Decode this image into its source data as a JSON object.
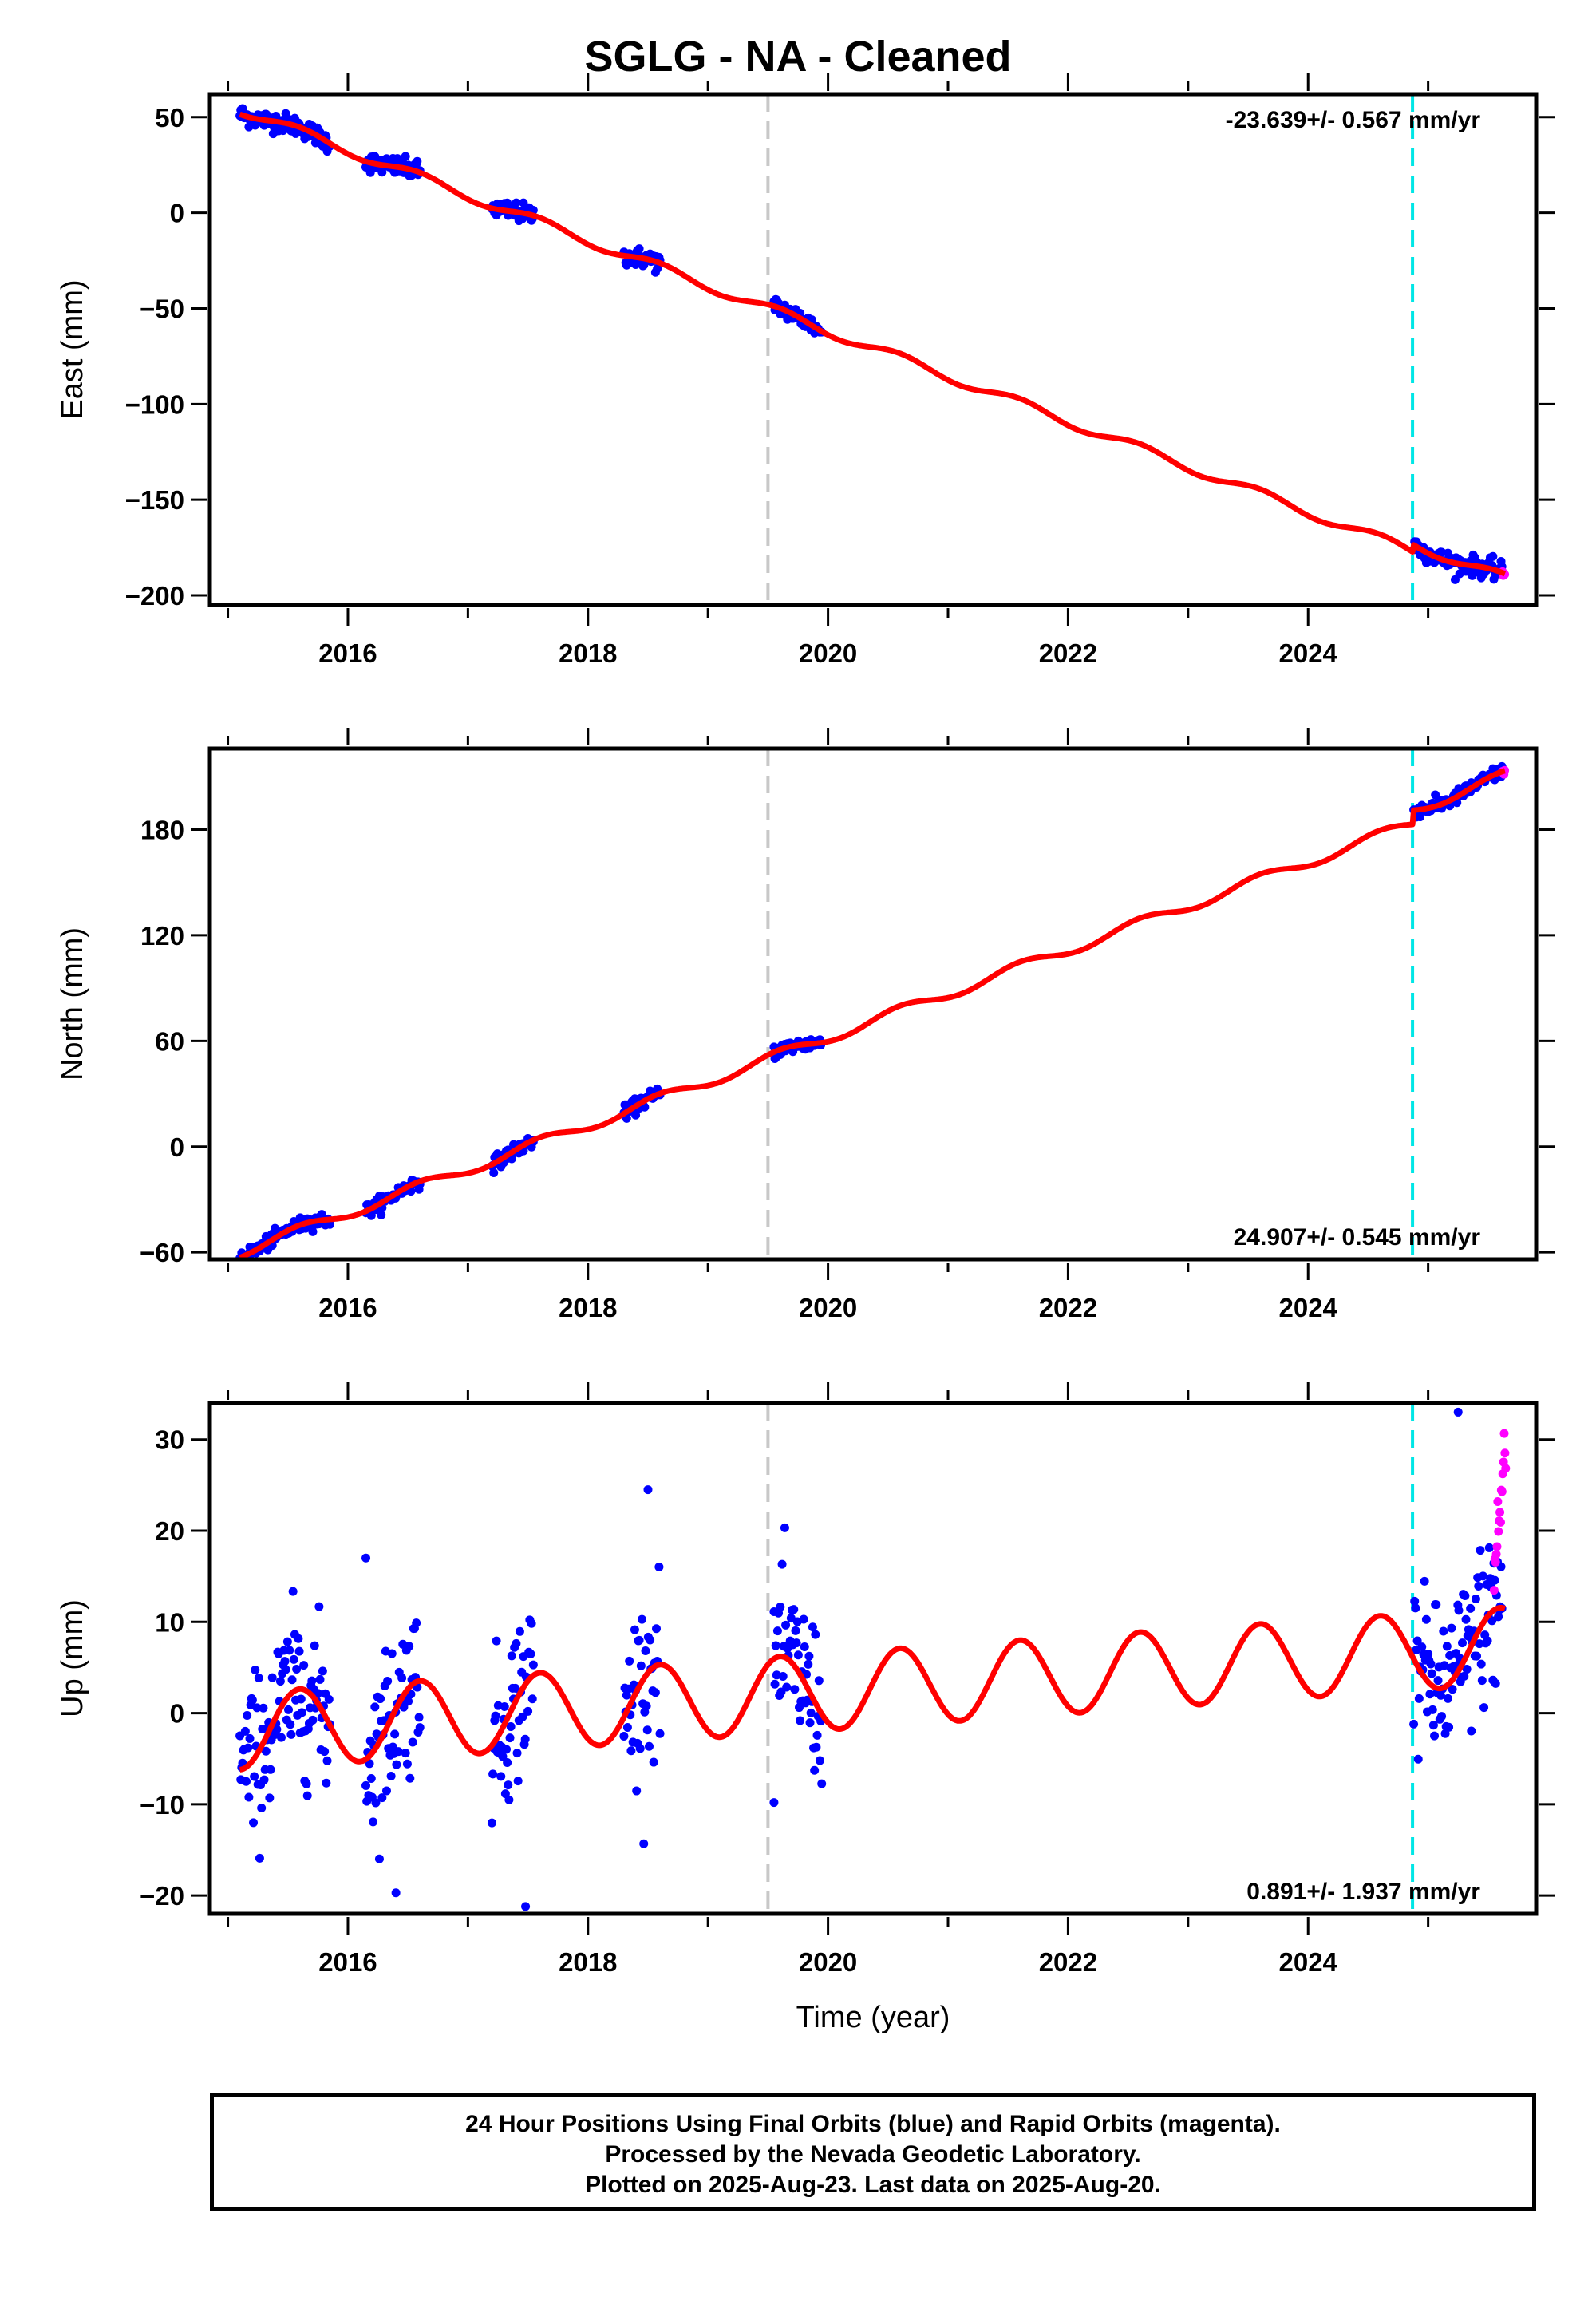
{
  "title": "SGLG  - NA - Cleaned",
  "colors": {
    "final_orbits": "#0000ff",
    "rapid_orbits": "#ff00ff",
    "model_fit": "#ff0000",
    "antenna_change": "#c8c8c8",
    "equipment_change": "#00e6e6"
  },
  "chart_data": [
    {
      "type": "scatter",
      "component": "East",
      "ylabel": "East (mm)",
      "xlabel": "",
      "xlim": [
        2014.85,
        2025.9
      ],
      "ylim": [
        -205,
        62
      ],
      "yticks": [
        50,
        0,
        -50,
        -100,
        -150,
        -200
      ],
      "xticks": [
        2016,
        2018,
        2020,
        2022,
        2024
      ],
      "rate": "-23.639+/- 0.567 mm/yr",
      "rate_position": "top-right",
      "vertical_lines": [
        {
          "x": 2019.5,
          "style": "dashed",
          "color": "gray"
        },
        {
          "x": 2024.87,
          "style": "dashed",
          "color": "cyan"
        }
      ],
      "trend": {
        "t0": 2015.1,
        "v0": 54,
        "slope": -23.639,
        "seasonal_amp": 2.5
      },
      "offsets": [
        {
          "x": 2024.87,
          "value": 4
        }
      ],
      "final_segments": [
        [
          2015.1,
          2015.85
        ],
        [
          2016.15,
          2016.6
        ],
        [
          2017.2,
          2017.55
        ],
        [
          2018.3,
          2018.6
        ],
        [
          2019.55,
          2019.95
        ],
        [
          2024.88,
          2025.62
        ]
      ],
      "rapid_segments": [
        [
          2025.62,
          2025.64
        ]
      ],
      "scatter_sd": 2.5
    },
    {
      "type": "scatter",
      "component": "North",
      "ylabel": "North (mm)",
      "xlabel": "",
      "xlim": [
        2014.85,
        2025.9
      ],
      "ylim": [
        -64,
        226
      ],
      "yticks": [
        180,
        120,
        60,
        0,
        -60
      ],
      "xticks": [
        2016,
        2018,
        2020,
        2022,
        2024
      ],
      "rate": "24.907+/- 0.545 mm/yr",
      "rate_position": "bottom-right",
      "vertical_lines": [
        {
          "x": 2019.5,
          "style": "dashed",
          "color": "gray"
        },
        {
          "x": 2024.87,
          "style": "dashed",
          "color": "cyan"
        }
      ],
      "trend": {
        "t0": 2015.1,
        "v0": -60,
        "slope": 24.907,
        "seasonal_amp": 3.0
      },
      "offsets": [
        {
          "x": 2024.87,
          "value": 8
        }
      ],
      "final_segments": [
        [
          2015.1,
          2015.85
        ],
        [
          2016.15,
          2016.6
        ],
        [
          2017.2,
          2017.55
        ],
        [
          2018.3,
          2018.6
        ],
        [
          2019.55,
          2019.95
        ],
        [
          2024.88,
          2025.62
        ]
      ],
      "rapid_segments": [
        [
          2025.62,
          2025.64
        ]
      ],
      "scatter_sd": 2.0
    },
    {
      "type": "scatter",
      "component": "Up",
      "ylabel": "Up (mm)",
      "xlabel": "Time (year)",
      "xlim": [
        2014.85,
        2025.9
      ],
      "ylim": [
        -22,
        34
      ],
      "yticks": [
        30,
        20,
        10,
        0,
        -10,
        -20
      ],
      "xticks": [
        2016,
        2018,
        2020,
        2022,
        2024
      ],
      "rate": "0.891+/- 1.937 mm/yr",
      "rate_position": "bottom-right",
      "vertical_lines": [
        {
          "x": 2019.5,
          "style": "dashed",
          "color": "gray"
        },
        {
          "x": 2024.87,
          "style": "dashed",
          "color": "cyan"
        }
      ],
      "trend": {
        "t0": 2015.1,
        "v0": -2.0,
        "slope": 0.891,
        "seasonal_amp": 4.2
      },
      "offsets": [
        {
          "x": 2024.87,
          "value": 0
        }
      ],
      "final_segments": [
        [
          2015.1,
          2015.85
        ],
        [
          2016.15,
          2016.6
        ],
        [
          2017.2,
          2017.55
        ],
        [
          2018.3,
          2018.6
        ],
        [
          2019.55,
          2019.95
        ],
        [
          2024.88,
          2025.62
        ]
      ],
      "rapid_segments": [
        [
          2025.55,
          2025.65
        ]
      ],
      "scatter_sd": 4.5,
      "outliers": [
        [
          2016.15,
          17.0
        ],
        [
          2018.5,
          24.5
        ],
        [
          2025.25,
          33.0
        ],
        [
          2017.48,
          -21.2
        ],
        [
          2016.4,
          -19.7
        ],
        [
          2019.55,
          -9.8
        ]
      ]
    }
  ],
  "footer": {
    "line1": "24 Hour Positions Using Final Orbits (blue) and Rapid Orbits (magenta).",
    "line2": "Processed by the Nevada Geodetic Laboratory.",
    "line3": "Plotted on 2025-Aug-23. Last data on 2025-Aug-20."
  }
}
